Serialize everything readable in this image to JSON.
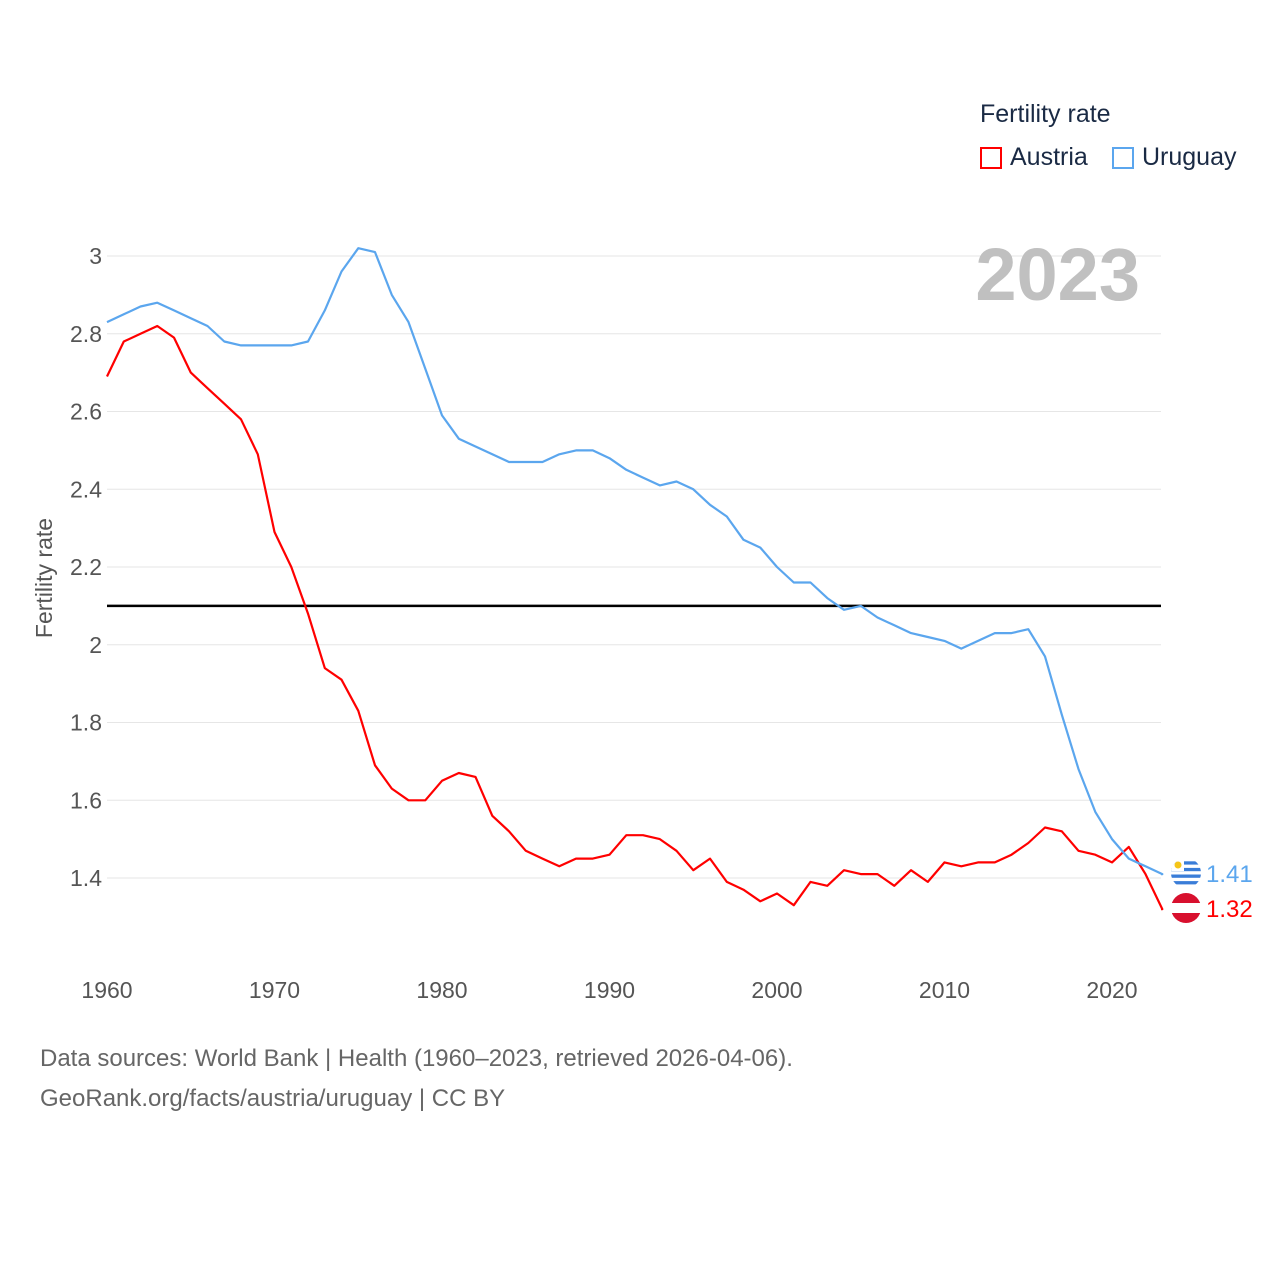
{
  "legend": {
    "title": "Fertility rate",
    "items": [
      {
        "label": "Austria",
        "color": "#ff0000"
      },
      {
        "label": "Uruguay",
        "color": "#5ba6ee"
      }
    ]
  },
  "year_display": "2023",
  "footer": {
    "line1": "Data sources: World Bank | Health (1960–2023, retrieved 2026-04-06).",
    "line2": "GeoRank.org/facts/austria/uruguay | CC BY"
  },
  "chart_data": {
    "type": "line",
    "title": "",
    "xlabel": "",
    "ylabel": "Fertility rate",
    "xlim": [
      1960,
      2023
    ],
    "ylim": [
      1.2,
      3.05
    ],
    "xticks": [
      1960,
      1970,
      1980,
      1990,
      2000,
      2010,
      2020
    ],
    "yticks": [
      1.4,
      1.6,
      1.8,
      2,
      2.2,
      2.4,
      2.6,
      2.8,
      3
    ],
    "ytick_labels": [
      "1.4",
      "1.6",
      "1.8",
      "2",
      "2.2",
      "2.4",
      "2.6",
      "2.8",
      "3"
    ],
    "grid": true,
    "reference_line": 2.1,
    "x_start": 1960,
    "series": [
      {
        "name": "Austria",
        "color": "#ff0000",
        "end_label": "1.32",
        "values": [
          2.69,
          2.78,
          2.8,
          2.82,
          2.79,
          2.7,
          2.66,
          2.62,
          2.58,
          2.49,
          2.29,
          2.2,
          2.08,
          1.94,
          1.91,
          1.83,
          1.69,
          1.63,
          1.6,
          1.6,
          1.65,
          1.67,
          1.66,
          1.56,
          1.52,
          1.47,
          1.45,
          1.43,
          1.45,
          1.45,
          1.46,
          1.51,
          1.51,
          1.5,
          1.47,
          1.42,
          1.45,
          1.39,
          1.37,
          1.34,
          1.36,
          1.33,
          1.39,
          1.38,
          1.42,
          1.41,
          1.41,
          1.38,
          1.42,
          1.39,
          1.44,
          1.43,
          1.44,
          1.44,
          1.46,
          1.49,
          1.53,
          1.52,
          1.47,
          1.46,
          1.44,
          1.48,
          1.41,
          1.32
        ]
      },
      {
        "name": "Uruguay",
        "color": "#5ba6ee",
        "end_label": "1.41",
        "values": [
          2.83,
          2.85,
          2.87,
          2.88,
          2.86,
          2.84,
          2.82,
          2.78,
          2.77,
          2.77,
          2.77,
          2.77,
          2.78,
          2.86,
          2.96,
          3.02,
          3.01,
          2.9,
          2.83,
          2.71,
          2.59,
          2.53,
          2.51,
          2.49,
          2.47,
          2.47,
          2.47,
          2.49,
          2.5,
          2.5,
          2.48,
          2.45,
          2.43,
          2.41,
          2.42,
          2.4,
          2.36,
          2.33,
          2.27,
          2.25,
          2.2,
          2.16,
          2.16,
          2.12,
          2.09,
          2.1,
          2.07,
          2.05,
          2.03,
          2.02,
          2.01,
          1.99,
          2.01,
          2.03,
          2.03,
          2.04,
          1.97,
          1.82,
          1.68,
          1.57,
          1.5,
          1.45,
          1.43,
          1.41
        ]
      }
    ]
  }
}
